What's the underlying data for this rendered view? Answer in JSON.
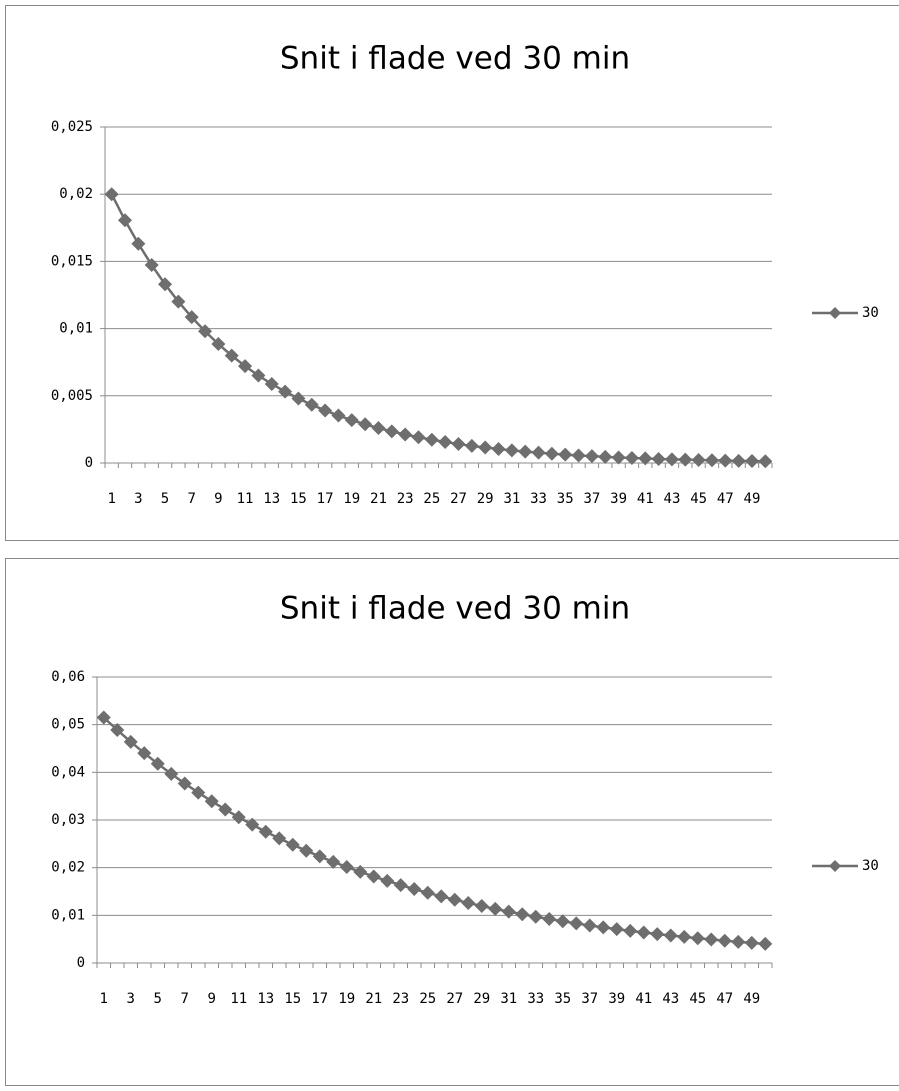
{
  "chart_data": [
    {
      "type": "line",
      "title": "Snit i flade ved 30 min",
      "categories": [
        "1",
        null,
        "3",
        null,
        "5",
        null,
        "7",
        null,
        "9",
        null,
        "11",
        null,
        "13",
        null,
        "15",
        null,
        "17",
        null,
        "19",
        null,
        "21",
        null,
        "23",
        null,
        "25",
        null,
        "27",
        null,
        "29",
        null,
        "31",
        null,
        "33",
        null,
        "35",
        null,
        "37",
        null,
        "39",
        null,
        "41",
        null,
        "43",
        null,
        "45",
        null,
        "47",
        null,
        "49",
        null
      ],
      "series": [
        {
          "name": "30",
          "color": "#6e6e6e",
          "values": [
            0.02,
            0.01806,
            0.01631,
            0.01473,
            0.0133,
            0.01201,
            0.01085,
            0.0098,
            0.00885,
            0.00799,
            0.00721,
            0.00651,
            0.00588,
            0.00531,
            0.0048,
            0.00433,
            0.00391,
            0.00353,
            0.00319,
            0.00288,
            0.0026,
            0.00235,
            0.00212,
            0.00192,
            0.00173,
            0.00156,
            0.00141,
            0.00127,
            0.00115,
            0.00104,
            0.00094,
            0.00085,
            0.00077,
            0.00069,
            0.00062,
            0.00056,
            0.00051,
            0.00046,
            0.00041,
            0.00037,
            0.00034,
            0.0003,
            0.00027,
            0.00025,
            0.00022,
            0.0002,
            0.00018,
            0.00016,
            0.00015,
            0.00013
          ]
        }
      ],
      "ylim": [
        0,
        0.025
      ],
      "yticks": [
        0,
        {
          "value": 0.005,
          "label": "0,005"
        },
        {
          "value": 0.01,
          "label": "0,01"
        },
        {
          "value": 0.015,
          "label": "0,015"
        },
        {
          "value": 0.02,
          "label": "0,02"
        },
        {
          "value": 0.025,
          "label": "0,025"
        }
      ],
      "grid": true,
      "legend": "right"
    },
    {
      "type": "line",
      "title": "Snit i flade ved 30 min",
      "categories": [
        "1",
        null,
        "3",
        null,
        "5",
        null,
        "7",
        null,
        "9",
        null,
        "11",
        null,
        "13",
        null,
        "15",
        null,
        "17",
        null,
        "19",
        null,
        "21",
        null,
        "23",
        null,
        "25",
        null,
        "27",
        null,
        "29",
        null,
        "31",
        null,
        "33",
        null,
        "35",
        null,
        "37",
        null,
        "39",
        null,
        "41",
        null,
        "43",
        null,
        "45",
        null,
        "47",
        null,
        "49",
        null
      ],
      "series": [
        {
          "name": "30",
          "color": "#6e6e6e",
          "values": [
            0.0515,
            0.04888,
            0.0464,
            0.04404,
            0.0418,
            0.03968,
            0.03766,
            0.03575,
            0.03393,
            0.03221,
            0.03057,
            0.02902,
            0.02754,
            0.02614,
            0.02482,
            0.02356,
            0.02236,
            0.02122,
            0.02015,
            0.01912,
            0.01815,
            0.01723,
            0.01635,
            0.01552,
            0.01473,
            0.01399,
            0.01328,
            0.0126,
            0.01196,
            0.01135,
            0.01078,
            0.01023,
            0.00971,
            0.00922,
            0.00875,
            0.0083,
            0.00788,
            0.00748,
            0.0071,
            0.00674,
            0.0064,
            0.00607,
            0.00576,
            0.00547,
            0.00519,
            0.00493,
            0.00468,
            0.00444,
            0.00421,
            0.004
          ]
        }
      ],
      "ylim": [
        0,
        0.06
      ],
      "yticks": [
        0,
        {
          "value": 0.01,
          "label": "0,01"
        },
        {
          "value": 0.02,
          "label": "0,02"
        },
        {
          "value": 0.03,
          "label": "0,03"
        },
        {
          "value": 0.04,
          "label": "0,04"
        },
        {
          "value": 0.05,
          "label": "0,05"
        },
        {
          "value": 0.06,
          "label": "0,06"
        }
      ],
      "grid": true,
      "legend": "right"
    }
  ]
}
